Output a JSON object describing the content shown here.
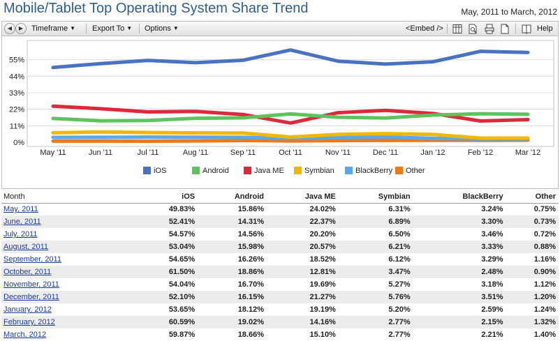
{
  "header": {
    "title": "Mobile/Tablet Top Operating System Share Trend",
    "date_range": "May, 2011 to March, 2012"
  },
  "toolbar": {
    "timeframe": "Timeframe",
    "export": "Export To",
    "options": "Options",
    "embed": "<Embed />",
    "help": "Help"
  },
  "colors": {
    "iOS": "#4a72c4",
    "Android": "#5cc45c",
    "Java ME": "#e0283c",
    "Symbian": "#f2b800",
    "BlackBerry": "#5aa8e8",
    "Other": "#f07818",
    "title": "#2f5f8f",
    "link": "#1a3c9e",
    "alt_row": "#ececec"
  },
  "chart_data": {
    "type": "line",
    "title": "Mobile/Tablet Top Operating System Share Trend",
    "categories": [
      "May '11",
      "Jun '11",
      "Jul '11",
      "Aug '11",
      "Sep '11",
      "Oct '11",
      "Nov '11",
      "Dec '11",
      "Jan '12",
      "Feb '12",
      "Mar '12"
    ],
    "y_ticks": [
      "0%",
      "11%",
      "22%",
      "33%",
      "44%",
      "55%"
    ],
    "ylim": [
      0,
      66
    ],
    "grid": "horizontal",
    "legend_position": "bottom",
    "series": [
      {
        "name": "iOS",
        "values": [
          49.83,
          52.41,
          54.57,
          53.04,
          54.65,
          61.5,
          54.04,
          52.1,
          53.65,
          60.59,
          59.87
        ]
      },
      {
        "name": "Android",
        "values": [
          15.86,
          14.31,
          14.56,
          15.98,
          16.26,
          18.86,
          16.7,
          16.15,
          18.12,
          19.02,
          18.66
        ]
      },
      {
        "name": "Java ME",
        "values": [
          24.02,
          22.37,
          20.2,
          20.57,
          18.52,
          12.81,
          19.69,
          21.27,
          19.19,
          14.16,
          15.1
        ]
      },
      {
        "name": "Symbian",
        "values": [
          6.31,
          6.89,
          6.5,
          6.21,
          6.12,
          3.47,
          5.27,
          5.76,
          5.2,
          2.77,
          2.77
        ]
      },
      {
        "name": "BlackBerry",
        "values": [
          3.24,
          3.3,
          3.46,
          3.33,
          3.29,
          2.48,
          3.18,
          3.51,
          2.59,
          2.15,
          2.21
        ]
      },
      {
        "name": "Other",
        "values": [
          0.75,
          0.73,
          0.72,
          0.88,
          1.16,
          0.9,
          1.12,
          1.2,
          1.24,
          1.32,
          1.4
        ]
      }
    ]
  },
  "table": {
    "headers": [
      "Month",
      "iOS",
      "Android",
      "Java ME",
      "Symbian",
      "BlackBerry",
      "Other"
    ],
    "rows": [
      [
        "May, 2011",
        "49.83%",
        "15.86%",
        "24.02%",
        "6.31%",
        "3.24%",
        "0.75%"
      ],
      [
        "June, 2011",
        "52.41%",
        "14.31%",
        "22.37%",
        "6.89%",
        "3.30%",
        "0.73%"
      ],
      [
        "July, 2011",
        "54.57%",
        "14.56%",
        "20.20%",
        "6.50%",
        "3.46%",
        "0.72%"
      ],
      [
        "August, 2011",
        "53.04%",
        "15.98%",
        "20.57%",
        "6.21%",
        "3.33%",
        "0.88%"
      ],
      [
        "September, 2011",
        "54.65%",
        "16.26%",
        "18.52%",
        "6.12%",
        "3.29%",
        "1.16%"
      ],
      [
        "October, 2011",
        "61.50%",
        "18.86%",
        "12.81%",
        "3.47%",
        "2.48%",
        "0.90%"
      ],
      [
        "November, 2011",
        "54.04%",
        "16.70%",
        "19.69%",
        "5.27%",
        "3.18%",
        "1.12%"
      ],
      [
        "December, 2011",
        "52.10%",
        "16.15%",
        "21.27%",
        "5.76%",
        "3.51%",
        "1.20%"
      ],
      [
        "January, 2012",
        "53.65%",
        "18.12%",
        "19.19%",
        "5.20%",
        "2.59%",
        "1.24%"
      ],
      [
        "February, 2012",
        "60.59%",
        "19.02%",
        "14.16%",
        "2.77%",
        "2.15%",
        "1.32%"
      ],
      [
        "March, 2012",
        "59.87%",
        "18.66%",
        "15.10%",
        "2.77%",
        "2.21%",
        "1.40%"
      ]
    ]
  }
}
